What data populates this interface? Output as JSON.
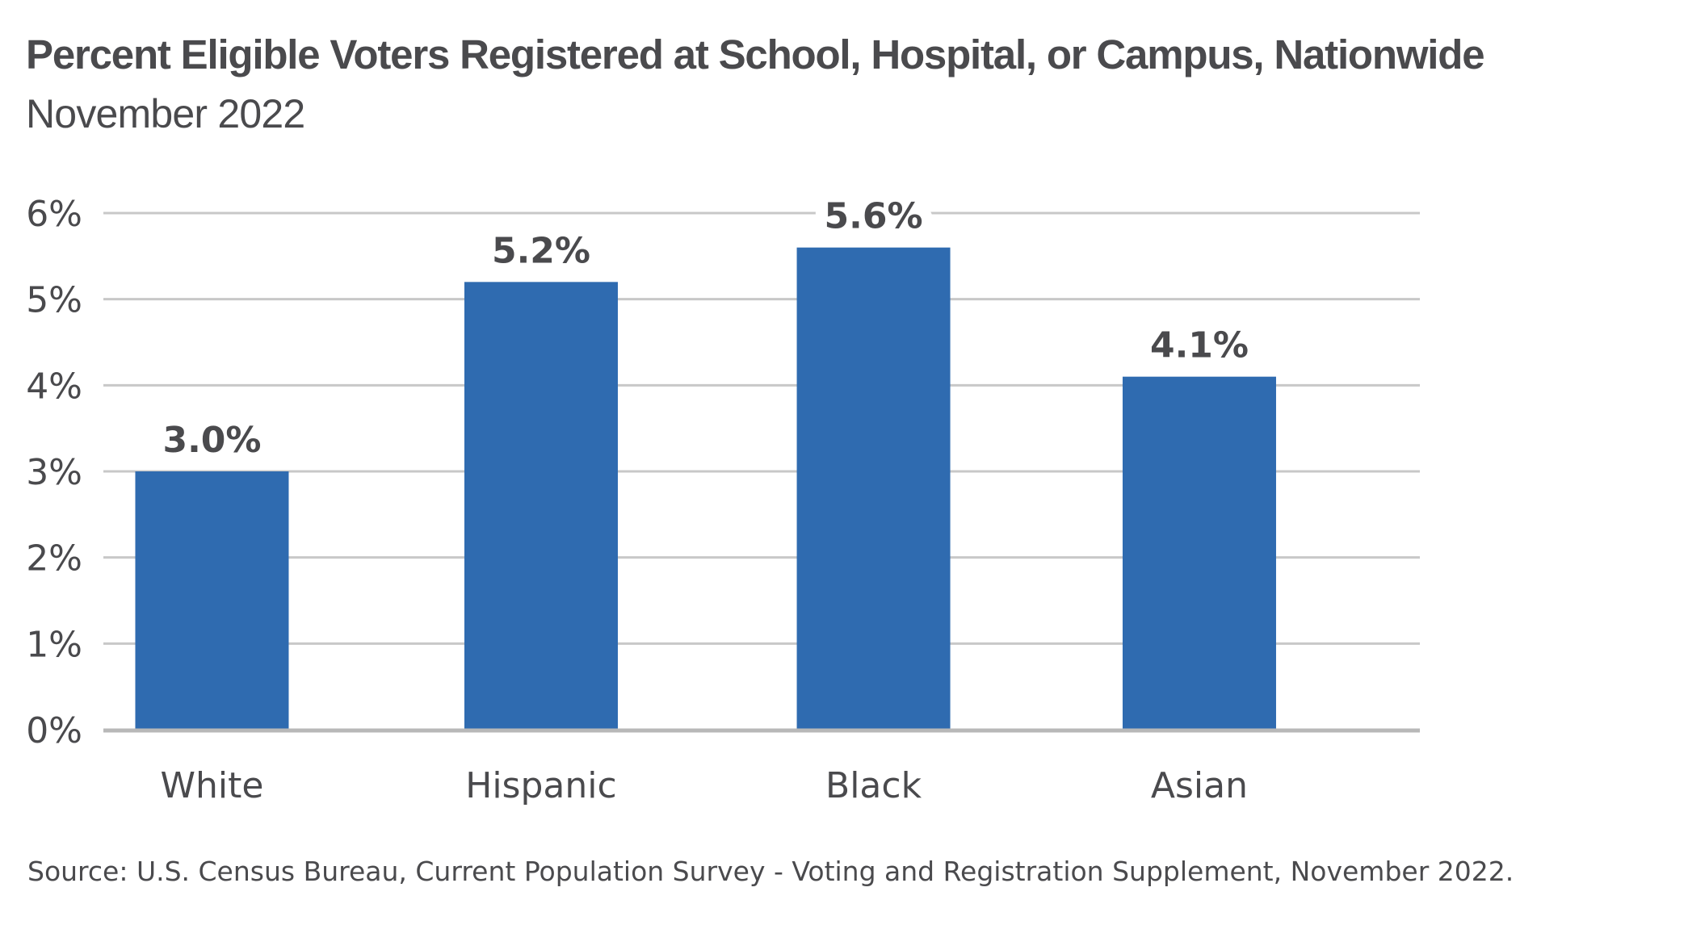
{
  "chart_data": {
    "type": "bar",
    "title": "Percent Eligible Voters Registered at School, Hospital, or Campus, Nationwide",
    "subtitle": "November 2022",
    "categories": [
      "White",
      "Hispanic",
      "Black",
      "Asian"
    ],
    "values": [
      3.0,
      5.2,
      5.6,
      4.1
    ],
    "value_labels": [
      "3.0%",
      "5.2%",
      "5.6%",
      "4.1%"
    ],
    "ylim": [
      0,
      6
    ],
    "yticks": [
      0,
      1,
      2,
      3,
      4,
      5,
      6
    ],
    "ytick_labels": [
      "0%",
      "1%",
      "2%",
      "3%",
      "4%",
      "5%",
      "6%"
    ],
    "xlabel": "",
    "ylabel": "",
    "grid": true,
    "legend": "none",
    "bar_color": "#2f6bb0",
    "grid_color": "#c8c8c8",
    "axis_color": "#b8b8b8",
    "text_color": "#4a4a4d"
  },
  "source": "Source: U.S. Census Bureau, Current Population Survey - Voting and Registration Supplement, November 2022."
}
